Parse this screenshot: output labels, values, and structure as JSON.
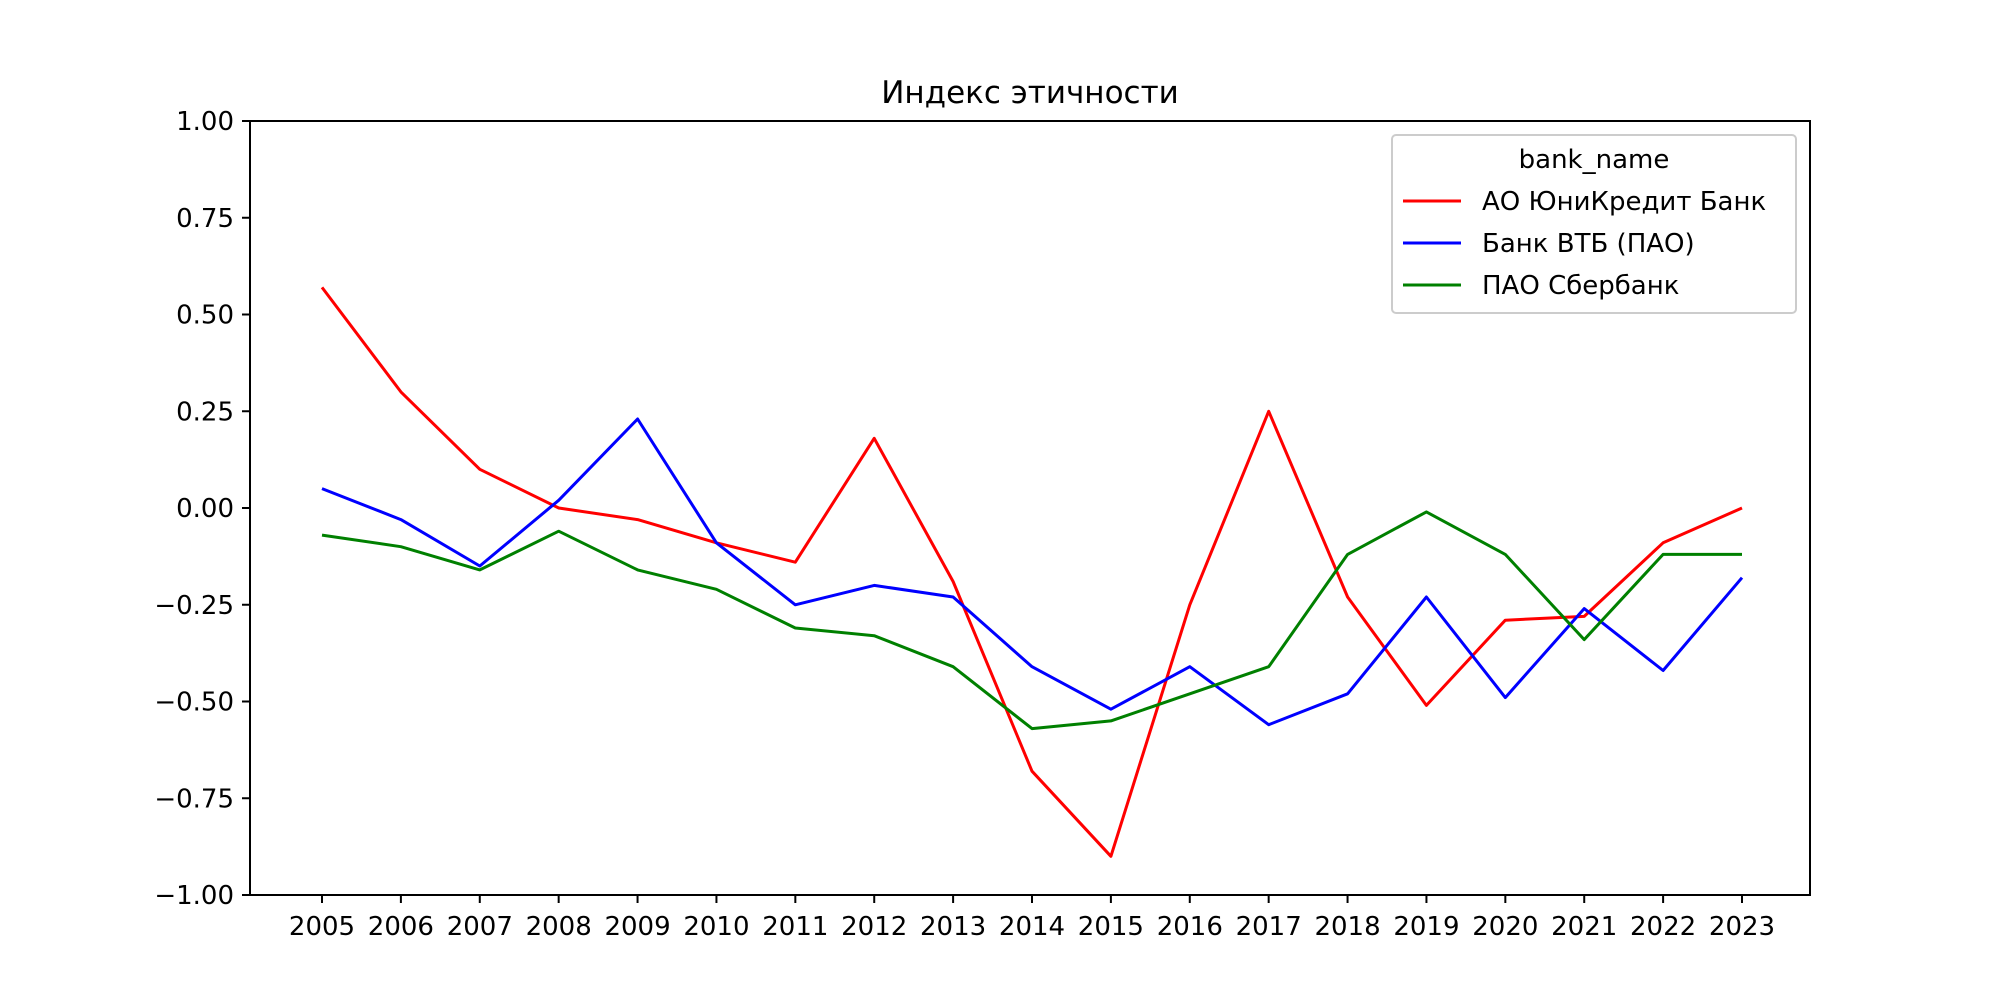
{
  "chart_data": {
    "type": "line",
    "title": "Индекс этичности",
    "xlabel": "",
    "ylabel": "",
    "x": [
      "2005",
      "2006",
      "2007",
      "2008",
      "2009",
      "2010",
      "2011",
      "2012",
      "2013",
      "2014",
      "2015",
      "2016",
      "2017",
      "2018",
      "2019",
      "2020",
      "2021",
      "2022",
      "2023"
    ],
    "yticks": [
      "1.00",
      "0.75",
      "0.50",
      "0.25",
      "0.00",
      "−0.25",
      "−0.50",
      "−0.75",
      "−1.00"
    ],
    "ylim": [
      -1.0,
      1.0
    ],
    "grid": false,
    "legend": {
      "title": "bank_name",
      "placement": "top-right"
    },
    "series": [
      {
        "name": "АО ЮниКредит Банк",
        "color": "#ff0000",
        "values": [
          0.57,
          0.3,
          0.1,
          0.0,
          -0.03,
          -0.09,
          -0.14,
          0.18,
          -0.19,
          -0.68,
          -0.9,
          -0.25,
          0.25,
          -0.23,
          -0.51,
          -0.29,
          -0.28,
          -0.09,
          0.0
        ]
      },
      {
        "name": "Банк ВТБ (ПАО)",
        "color": "#0000ff",
        "values": [
          0.05,
          -0.03,
          -0.15,
          0.02,
          0.23,
          -0.09,
          -0.25,
          -0.2,
          -0.23,
          -0.41,
          -0.52,
          -0.41,
          -0.56,
          -0.48,
          -0.23,
          -0.49,
          -0.26,
          -0.42,
          -0.18
        ]
      },
      {
        "name": "ПАО Сбербанк",
        "color": "#008000",
        "values": [
          -0.07,
          -0.1,
          -0.16,
          -0.06,
          -0.16,
          -0.21,
          -0.31,
          -0.33,
          -0.41,
          -0.57,
          -0.55,
          -0.48,
          -0.41,
          -0.12,
          -0.01,
          -0.12,
          -0.34,
          -0.12,
          -0.12
        ]
      }
    ]
  }
}
